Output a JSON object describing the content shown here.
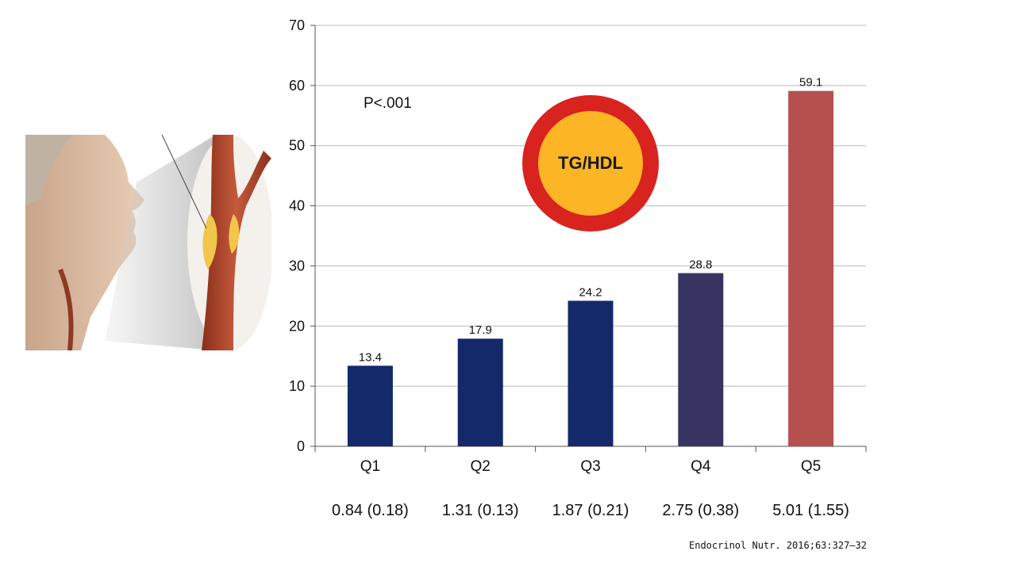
{
  "annotation": {
    "pvalue": "P<.001"
  },
  "badge": {
    "label": "TG/HDL",
    "ring_color": "#d8231f",
    "fill_color": "#fbb525"
  },
  "citation": "Endocrinol Nutr. 2016;63:327–32",
  "chart_data": {
    "type": "bar",
    "categories": [
      "Q1",
      "Q2",
      "Q3",
      "Q4",
      "Q5"
    ],
    "category_sublabels": [
      "0.84 (0.18)",
      "1.31 (0.13)",
      "1.87 (0.21)",
      "2.75 (0.38)",
      "5.01 (1.55)"
    ],
    "values": [
      13.4,
      17.9,
      24.2,
      28.8,
      59.1
    ],
    "data_labels": [
      "13.4",
      "17.9",
      "24.2",
      "28.8",
      "59.1"
    ],
    "colors": [
      "#13296a",
      "#13296a",
      "#13296a",
      "#383462",
      "#b6504f"
    ],
    "ylim": [
      0,
      70
    ],
    "yticks": [
      0,
      10,
      20,
      30,
      40,
      50,
      60,
      70
    ],
    "grid": true,
    "title": "",
    "xlabel": "",
    "ylabel": ""
  }
}
